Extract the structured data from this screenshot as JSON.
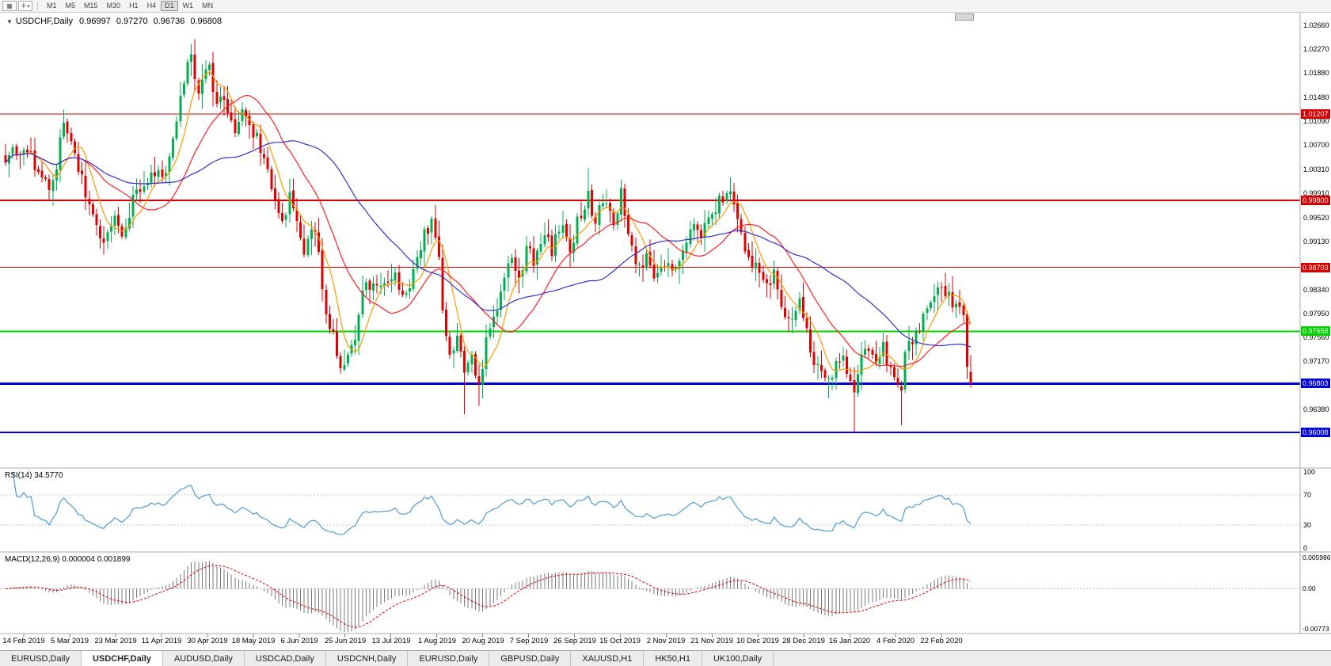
{
  "colors": {
    "up": "#00B050",
    "down": "#E00000",
    "background": "#FFFFFF",
    "pane_border": "#ABABAB"
  },
  "toolbar": {
    "icon1_glyph": "▦",
    "icon2_glyph": "✛",
    "caret_glyph": "▾",
    "timeframes": [
      "M1",
      "M5",
      "M15",
      "M30",
      "H1",
      "H4",
      "D1",
      "W1",
      "MN"
    ],
    "active_timeframe": "D1"
  },
  "chart": {
    "title": {
      "collapse_glyph": "▼",
      "symbol": "USDCHF,Daily",
      "open": "0.96997",
      "high": "0.97270",
      "low": "0.96736",
      "close": "0.96808"
    },
    "y_axis_labels": [
      "1.02660",
      "1.02270",
      "1.01880",
      "1.01480",
      "1.01090",
      "1.00700",
      "1.00310",
      "0.99910",
      "0.99520",
      "0.99130",
      "0.98730",
      "0.98340",
      "0.97950",
      "0.97560",
      "0.97170",
      "0.96770",
      "0.96380",
      "0.95990"
    ],
    "x_axis_labels": [
      "14 Feb 2019",
      "5 Mar 2019",
      "23 Mar 2019",
      "11 Apr 2019",
      "30 Apr 2019",
      "18 May 2019",
      "6 Jun 2019",
      "25 Jun 2019",
      "13 Jul 2019",
      "1 Aug 2019",
      "20 Aug 2019",
      "7 Sep 2019",
      "26 Sep 2019",
      "15 Oct 2019",
      "2 Nov 2019",
      "21 Nov 2019",
      "10 Dec 2019",
      "28 Dec 2019",
      "16 Jan 2020",
      "4 Feb 2020",
      "22 Feb 2020"
    ],
    "levels": [
      {
        "value": "1.01207",
        "color": "#D40000",
        "width": 1
      },
      {
        "value": "0.99800",
        "color": "#D40000",
        "width": 2
      },
      {
        "value": "0.98703",
        "color": "#D40000",
        "width": 1
      },
      {
        "value": "0.97658",
        "color": "#00D200",
        "width": 2
      },
      {
        "value": "0.96803",
        "color": "#0000D4",
        "width": 3
      },
      {
        "value": "0.96008",
        "color": "#0000D4",
        "width": 2
      }
    ]
  },
  "rsi": {
    "label": "RSI(14) 34.5770",
    "period": 14,
    "current": "34.5770",
    "scale_labels": [
      "100",
      "70",
      "30",
      "0"
    ],
    "guide_levels": [
      70,
      30
    ],
    "color": "#4C9BD6"
  },
  "macd": {
    "label": "MACD(12,26,9) 0.000004 0.001899",
    "fast": 12,
    "slow": 26,
    "signal": 9,
    "values": [
      "0.000004",
      "0.001899"
    ],
    "scale_labels": [
      "0.005986",
      "0.00",
      "-0.00773"
    ],
    "max": 0.005986,
    "min": -0.00773,
    "hist_color": "#787878",
    "signal_color": "#E00000"
  },
  "tabs": {
    "items": [
      "EURUSD,Daily",
      "USDCHF,Daily",
      "AUDUSD,Daily",
      "USDCAD,Daily",
      "USDCNH,Daily",
      "EURUSD,Daily",
      "GBPUSD,Daily",
      "XAUUSD,H1",
      "HK50,H1",
      "UK100,Daily"
    ],
    "active_index": 1
  },
  "chart_data": {
    "type": "candlestick",
    "symbol": "USDCHF",
    "timeframe": "Daily",
    "num_candles": 266,
    "seed": 20200222,
    "noise": 0.0026,
    "wick": 0.0022,
    "price_anchors": [
      [
        0,
        1.0048
      ],
      [
        3,
        1.0065
      ],
      [
        6,
        1.0058
      ],
      [
        9,
        1.0028
      ],
      [
        12,
        0.9996
      ],
      [
        14,
        1.004
      ],
      [
        16,
        1.0112
      ],
      [
        19,
        1.0062
      ],
      [
        23,
        0.9962
      ],
      [
        27,
        0.9916
      ],
      [
        30,
        0.9946
      ],
      [
        32,
        0.9922
      ],
      [
        35,
        0.9985
      ],
      [
        38,
        1.0
      ],
      [
        41,
        1.0032
      ],
      [
        44,
        1.0012
      ],
      [
        46,
        1.0075
      ],
      [
        49,
        1.017
      ],
      [
        51,
        1.0222
      ],
      [
        53,
        1.015
      ],
      [
        55,
        1.0185
      ],
      [
        56,
        1.0208
      ],
      [
        58,
        1.013
      ],
      [
        60,
        1.0148
      ],
      [
        63,
        1.0095
      ],
      [
        65,
        1.0122
      ],
      [
        68,
        1.0092
      ],
      [
        71,
        1.0058
      ],
      [
        73,
        1.0002
      ],
      [
        76,
        0.9938
      ],
      [
        78,
        0.9988
      ],
      [
        82,
        0.9902
      ],
      [
        85,
        0.9938
      ],
      [
        88,
        0.98
      ],
      [
        92,
        0.9706
      ],
      [
        94,
        0.9722
      ],
      [
        96,
        0.9762
      ],
      [
        98,
        0.9822
      ],
      [
        101,
        0.9856
      ],
      [
        103,
        0.983
      ],
      [
        107,
        0.9868
      ],
      [
        109,
        0.982
      ],
      [
        112,
        0.9856
      ],
      [
        115,
        0.992
      ],
      [
        117,
        0.9948
      ],
      [
        119,
        0.989
      ],
      [
        120,
        0.98
      ],
      [
        122,
        0.9716
      ],
      [
        124,
        0.9746
      ],
      [
        126,
        0.97
      ],
      [
        128,
        0.9736
      ],
      [
        130,
        0.9668
      ],
      [
        132,
        0.9746
      ],
      [
        135,
        0.98
      ],
      [
        137,
        0.9856
      ],
      [
        139,
        0.988
      ],
      [
        141,
        0.9846
      ],
      [
        143,
        0.9906
      ],
      [
        145,
        0.9872
      ],
      [
        148,
        0.992
      ],
      [
        150,
        0.9896
      ],
      [
        152,
        0.994
      ],
      [
        155,
        0.9906
      ],
      [
        158,
        0.9958
      ],
      [
        160,
        0.9984
      ],
      [
        162,
        0.995
      ],
      [
        164,
        0.9984
      ],
      [
        167,
        0.995
      ],
      [
        169,
        0.9988
      ],
      [
        171,
        0.993
      ],
      [
        173,
        0.9872
      ],
      [
        176,
        0.9886
      ],
      [
        178,
        0.9852
      ],
      [
        181,
        0.988
      ],
      [
        183,
        0.987
      ],
      [
        186,
        0.9896
      ],
      [
        188,
        0.9944
      ],
      [
        191,
        0.992
      ],
      [
        194,
        0.996
      ],
      [
        196,
        0.9976
      ],
      [
        199,
        1.0
      ],
      [
        201,
        0.995
      ],
      [
        203,
        0.99
      ],
      [
        206,
        0.9866
      ],
      [
        208,
        0.9842
      ],
      [
        211,
        0.9856
      ],
      [
        213,
        0.9812
      ],
      [
        215,
        0.979
      ],
      [
        218,
        0.9816
      ],
      [
        220,
        0.9772
      ],
      [
        221,
        0.9736
      ],
      [
        223,
        0.97
      ],
      [
        226,
        0.9686
      ],
      [
        228,
        0.9712
      ],
      [
        230,
        0.9726
      ],
      [
        232,
        0.9692
      ],
      [
        233,
        0.9668
      ],
      [
        235,
        0.9716
      ],
      [
        237,
        0.9736
      ],
      [
        239,
        0.9712
      ],
      [
        241,
        0.9746
      ],
      [
        243,
        0.97
      ],
      [
        246,
        0.9682
      ],
      [
        247,
        0.9732
      ],
      [
        249,
        0.9752
      ],
      [
        251,
        0.9776
      ],
      [
        253,
        0.98
      ],
      [
        256,
        0.984
      ],
      [
        257,
        0.9848
      ],
      [
        259,
        0.9822
      ],
      [
        261,
        0.9806
      ],
      [
        263,
        0.9792
      ],
      [
        264,
        0.97
      ],
      [
        265,
        0.96808
      ]
    ],
    "spikes": [
      {
        "i": 51,
        "high": 1.023
      },
      {
        "i": 126,
        "low": 0.963
      },
      {
        "i": 130,
        "low": 0.9644
      },
      {
        "i": 160,
        "high": 1.0032
      },
      {
        "i": 199,
        "high": 1.0018
      },
      {
        "i": 226,
        "low": 0.9656
      },
      {
        "i": 233,
        "low": 0.9601
      },
      {
        "i": 246,
        "low": 0.9612
      }
    ],
    "last_candle": {
      "open": 0.96997,
      "high": 0.9727,
      "low": 0.96736,
      "close": 0.96808
    },
    "moving_averages": [
      {
        "period": 7,
        "color": "#FF9900"
      },
      {
        "period": 20,
        "color": "#FF2020"
      },
      {
        "period": 45,
        "color": "#3030D0"
      }
    ]
  }
}
